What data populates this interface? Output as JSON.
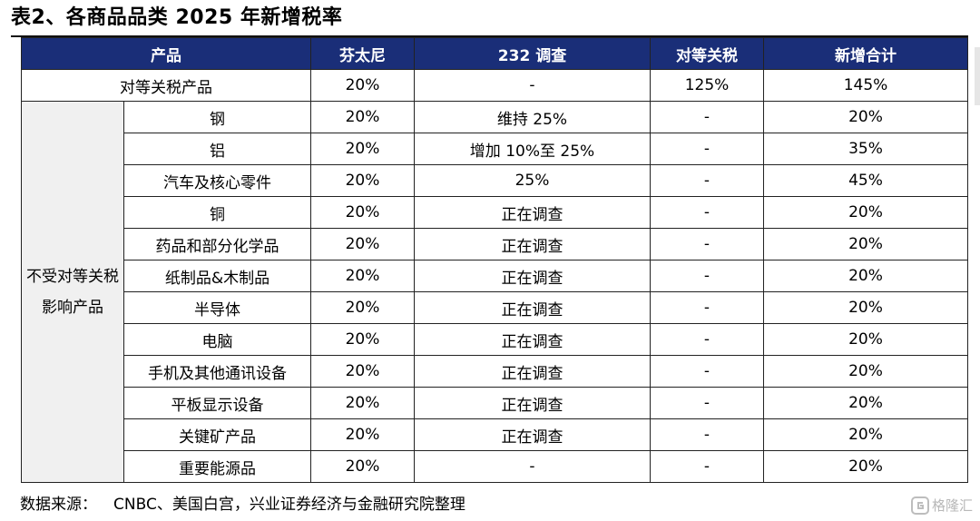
{
  "title": "表2、各商品品类 2025 年新增税率",
  "table": {
    "headers": [
      "产品",
      "芬太尼",
      "232 调查",
      "对等关税",
      "新增合计"
    ],
    "first_row": {
      "product": "对等关税产品",
      "fentanyl": "20%",
      "s232": "-",
      "reciprocal": "125%",
      "total": "145%"
    },
    "group_label": "不受对等关税影响产品",
    "rows": [
      {
        "product": "钢",
        "fentanyl": "20%",
        "s232": "维持 25%",
        "reciprocal": "-",
        "total": "20%"
      },
      {
        "product": "铝",
        "fentanyl": "20%",
        "s232": "增加 10%至 25%",
        "reciprocal": "-",
        "total": "35%"
      },
      {
        "product": "汽车及核心零件",
        "fentanyl": "20%",
        "s232": "25%",
        "reciprocal": "-",
        "total": "45%"
      },
      {
        "product": "铜",
        "fentanyl": "20%",
        "s232": "正在调查",
        "reciprocal": "-",
        "total": "20%"
      },
      {
        "product": "药品和部分化学品",
        "fentanyl": "20%",
        "s232": "正在调查",
        "reciprocal": "-",
        "total": "20%"
      },
      {
        "product": "纸制品&木制品",
        "fentanyl": "20%",
        "s232": "正在调查",
        "reciprocal": "-",
        "total": "20%"
      },
      {
        "product": "半导体",
        "fentanyl": "20%",
        "s232": "正在调查",
        "reciprocal": "-",
        "total": "20%"
      },
      {
        "product": "电脑",
        "fentanyl": "20%",
        "s232": "正在调查",
        "reciprocal": "-",
        "total": "20%"
      },
      {
        "product": "手机及其他通讯设备",
        "fentanyl": "20%",
        "s232": "正在调查",
        "reciprocal": "-",
        "total": "20%"
      },
      {
        "product": "平板显示设备",
        "fentanyl": "20%",
        "s232": "正在调查",
        "reciprocal": "-",
        "total": "20%"
      },
      {
        "product": "关键矿产品",
        "fentanyl": "20%",
        "s232": "正在调查",
        "reciprocal": "-",
        "total": "20%"
      },
      {
        "product": "重要能源品",
        "fentanyl": "20%",
        "s232": "-",
        "reciprocal": "-",
        "total": "20%"
      }
    ]
  },
  "source": {
    "label": "数据来源：",
    "text": "CNBC、美国白宫，兴业证券经济与金融研究院整理"
  },
  "watermark": {
    "text": "格隆汇",
    "icon": "gelonghui-logo-icon"
  },
  "colors": {
    "header_bg": "#1a2e78",
    "header_text": "#ffffff",
    "group_bg": "#f0f0f0"
  }
}
